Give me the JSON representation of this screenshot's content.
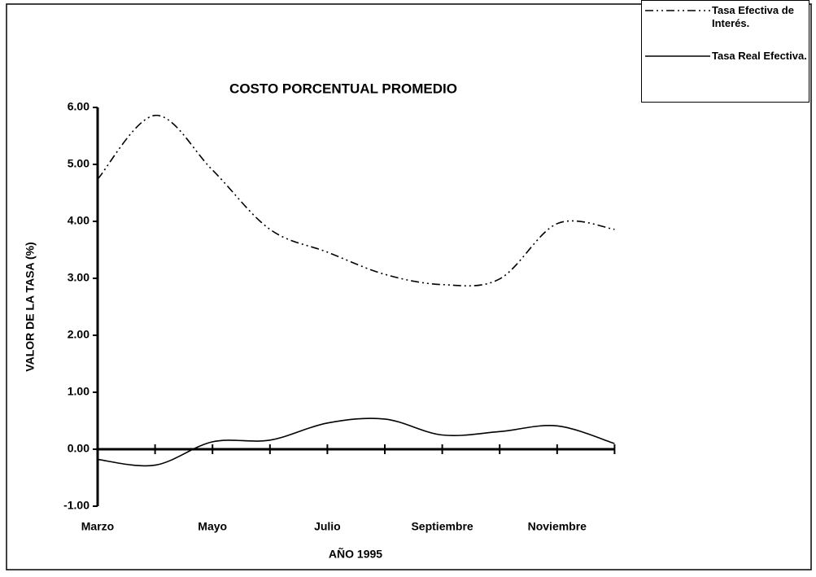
{
  "chart_data": {
    "type": "line",
    "title": "COSTO PORCENTUAL PROMEDIO",
    "x_label": "AÑO 1995",
    "y_label": "VALOR DE LA TASA (%)",
    "categories": [
      "Marzo",
      null,
      "Mayo",
      null,
      "Julio",
      null,
      "Septiembre",
      null,
      "Noviembre",
      null
    ],
    "series": [
      {
        "name": "Tasa Efectiva de Interés.",
        "color": "#000000",
        "dash": "dash-dot-dot",
        "values": [
          4.74,
          5.86,
          4.9,
          3.86,
          3.46,
          3.07,
          2.89,
          2.99,
          3.96,
          3.86
        ]
      },
      {
        "name": "Tasa Real Efectiva.",
        "color": "#000000",
        "dash": "solid",
        "values": [
          -0.18,
          -0.28,
          0.13,
          0.16,
          0.46,
          0.53,
          0.25,
          0.31,
          0.41,
          0.1
        ]
      }
    ],
    "ylim": [
      -1,
      6
    ],
    "yticks": [
      {
        "value": -1,
        "label": "-1.00"
      },
      {
        "value": 0,
        "label": "0.00"
      },
      {
        "value": 1,
        "label": "1.00"
      },
      {
        "value": 2,
        "label": "2.00"
      },
      {
        "value": 3,
        "label": "3.00"
      },
      {
        "value": 4,
        "label": "4.00"
      },
      {
        "value": 5,
        "label": "5.00"
      },
      {
        "value": 6,
        "label": "6.00"
      }
    ],
    "grid": false,
    "legend": "top-right"
  }
}
